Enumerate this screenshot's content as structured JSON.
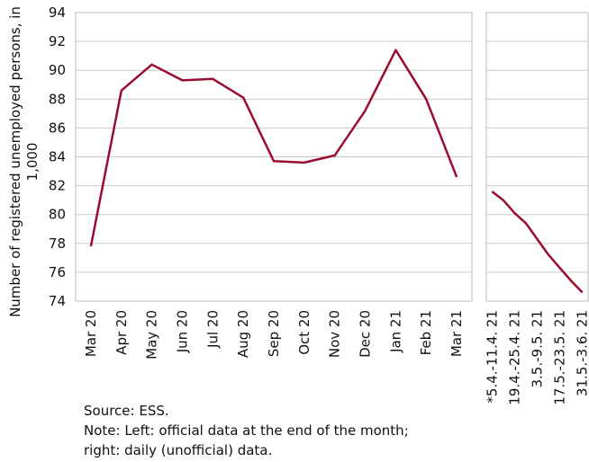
{
  "chart_data": [
    {
      "type": "line",
      "ylabel": [
        "Number of registered unemployed persons, in",
        "1,000"
      ],
      "categories": [
        "Mar 20",
        "Apr 20",
        "May 20",
        "Jun 20",
        "Jul 20",
        "Aug 20",
        "Sep 20",
        "Oct 20",
        "Nov 20",
        "Dec 20",
        "Jan 21",
        "Feb 21",
        "Mar 21"
      ],
      "values": [
        77.8,
        88.6,
        90.4,
        89.3,
        89.4,
        88.1,
        83.7,
        83.6,
        84.1,
        87.2,
        91.4,
        88.0,
        82.6
      ],
      "color": "#9b0d2e",
      "ylim": [
        74,
        94
      ],
      "yticks": [
        74,
        76,
        78,
        80,
        82,
        84,
        86,
        88,
        90,
        92,
        94
      ],
      "grid": true
    },
    {
      "type": "line",
      "categories": [
        "*5.4.-11.4. 21",
        null,
        "19.4.-25.4. 21",
        null,
        "3.5.-9.5. 21",
        null,
        "17.5.-23.5. 21",
        null,
        "31.5.-3.6. 21"
      ],
      "values": [
        81.6,
        81.0,
        80.1,
        79.4,
        78.3,
        77.2,
        76.3,
        75.4,
        74.6
      ],
      "color": "#9b0d2e",
      "ylim": [
        74,
        94
      ],
      "grid": true
    }
  ],
  "notes": [
    "Source: ESS.",
    "Note: Left: official data at the end of the month;",
    "right: daily (unofficial) data."
  ]
}
